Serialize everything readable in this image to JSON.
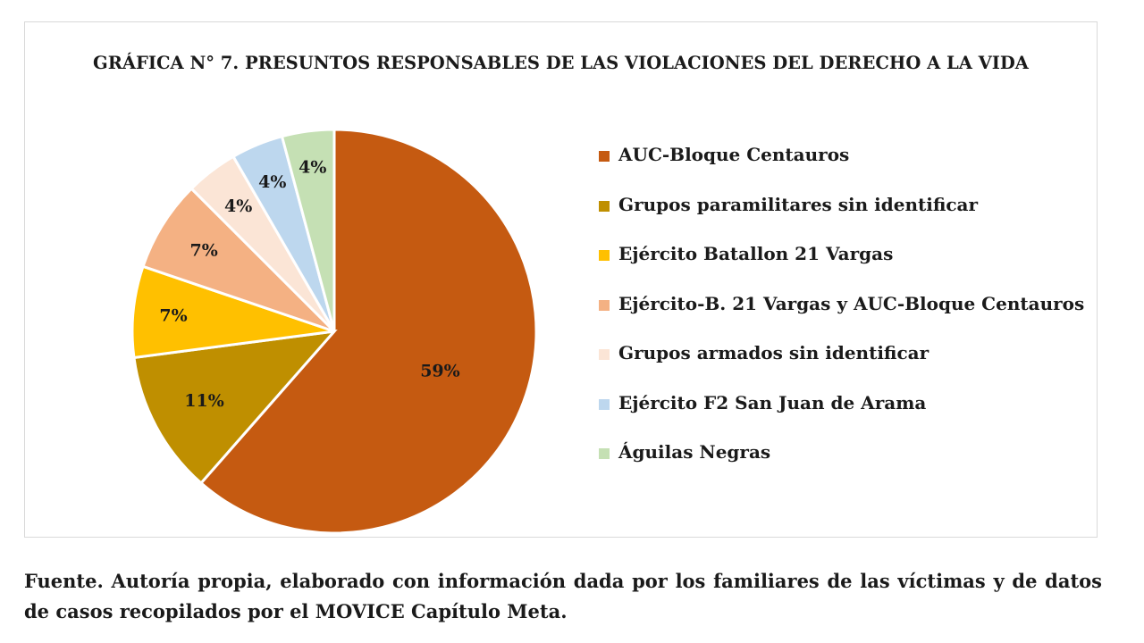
{
  "chart_data": {
    "type": "pie",
    "title": "GRÁFICA N° 7. PRESUNTOS RESPONSABLES DE LAS VIOLACIONES DEL DERECHO A LA VIDA",
    "legend_position": "right",
    "slices": [
      {
        "name": "AUC-Bloque Centauros",
        "value": 59,
        "label": "59%",
        "color": "#c55a11"
      },
      {
        "name": "Grupos paramilitares sin identificar",
        "value": 11,
        "label": "11%",
        "color": "#bf8f00"
      },
      {
        "name": "Ejército Batallon 21 Vargas",
        "value": 7,
        "label": "7%",
        "color": "#ffc000"
      },
      {
        "name": "Ejército-B. 21 Vargas y AUC-Bloque Centauros",
        "value": 7,
        "label": "7%",
        "color": "#f4b183"
      },
      {
        "name": "Grupos armados sin identificar",
        "value": 4,
        "label": "4%",
        "color": "#fbe5d6"
      },
      {
        "name": "Ejército F2 San Juan de Arama",
        "value": 4,
        "label": "4%",
        "color": "#bdd7ee"
      },
      {
        "name": "Águilas Negras",
        "value": 4,
        "label": "4%",
        "color": "#c5e0b4"
      }
    ]
  },
  "source_note": "Fuente. Autoría propia, elaborado con información dada por los familiares de las víctimas y de datos de casos recopilados por el MOVICE Capítulo Meta."
}
